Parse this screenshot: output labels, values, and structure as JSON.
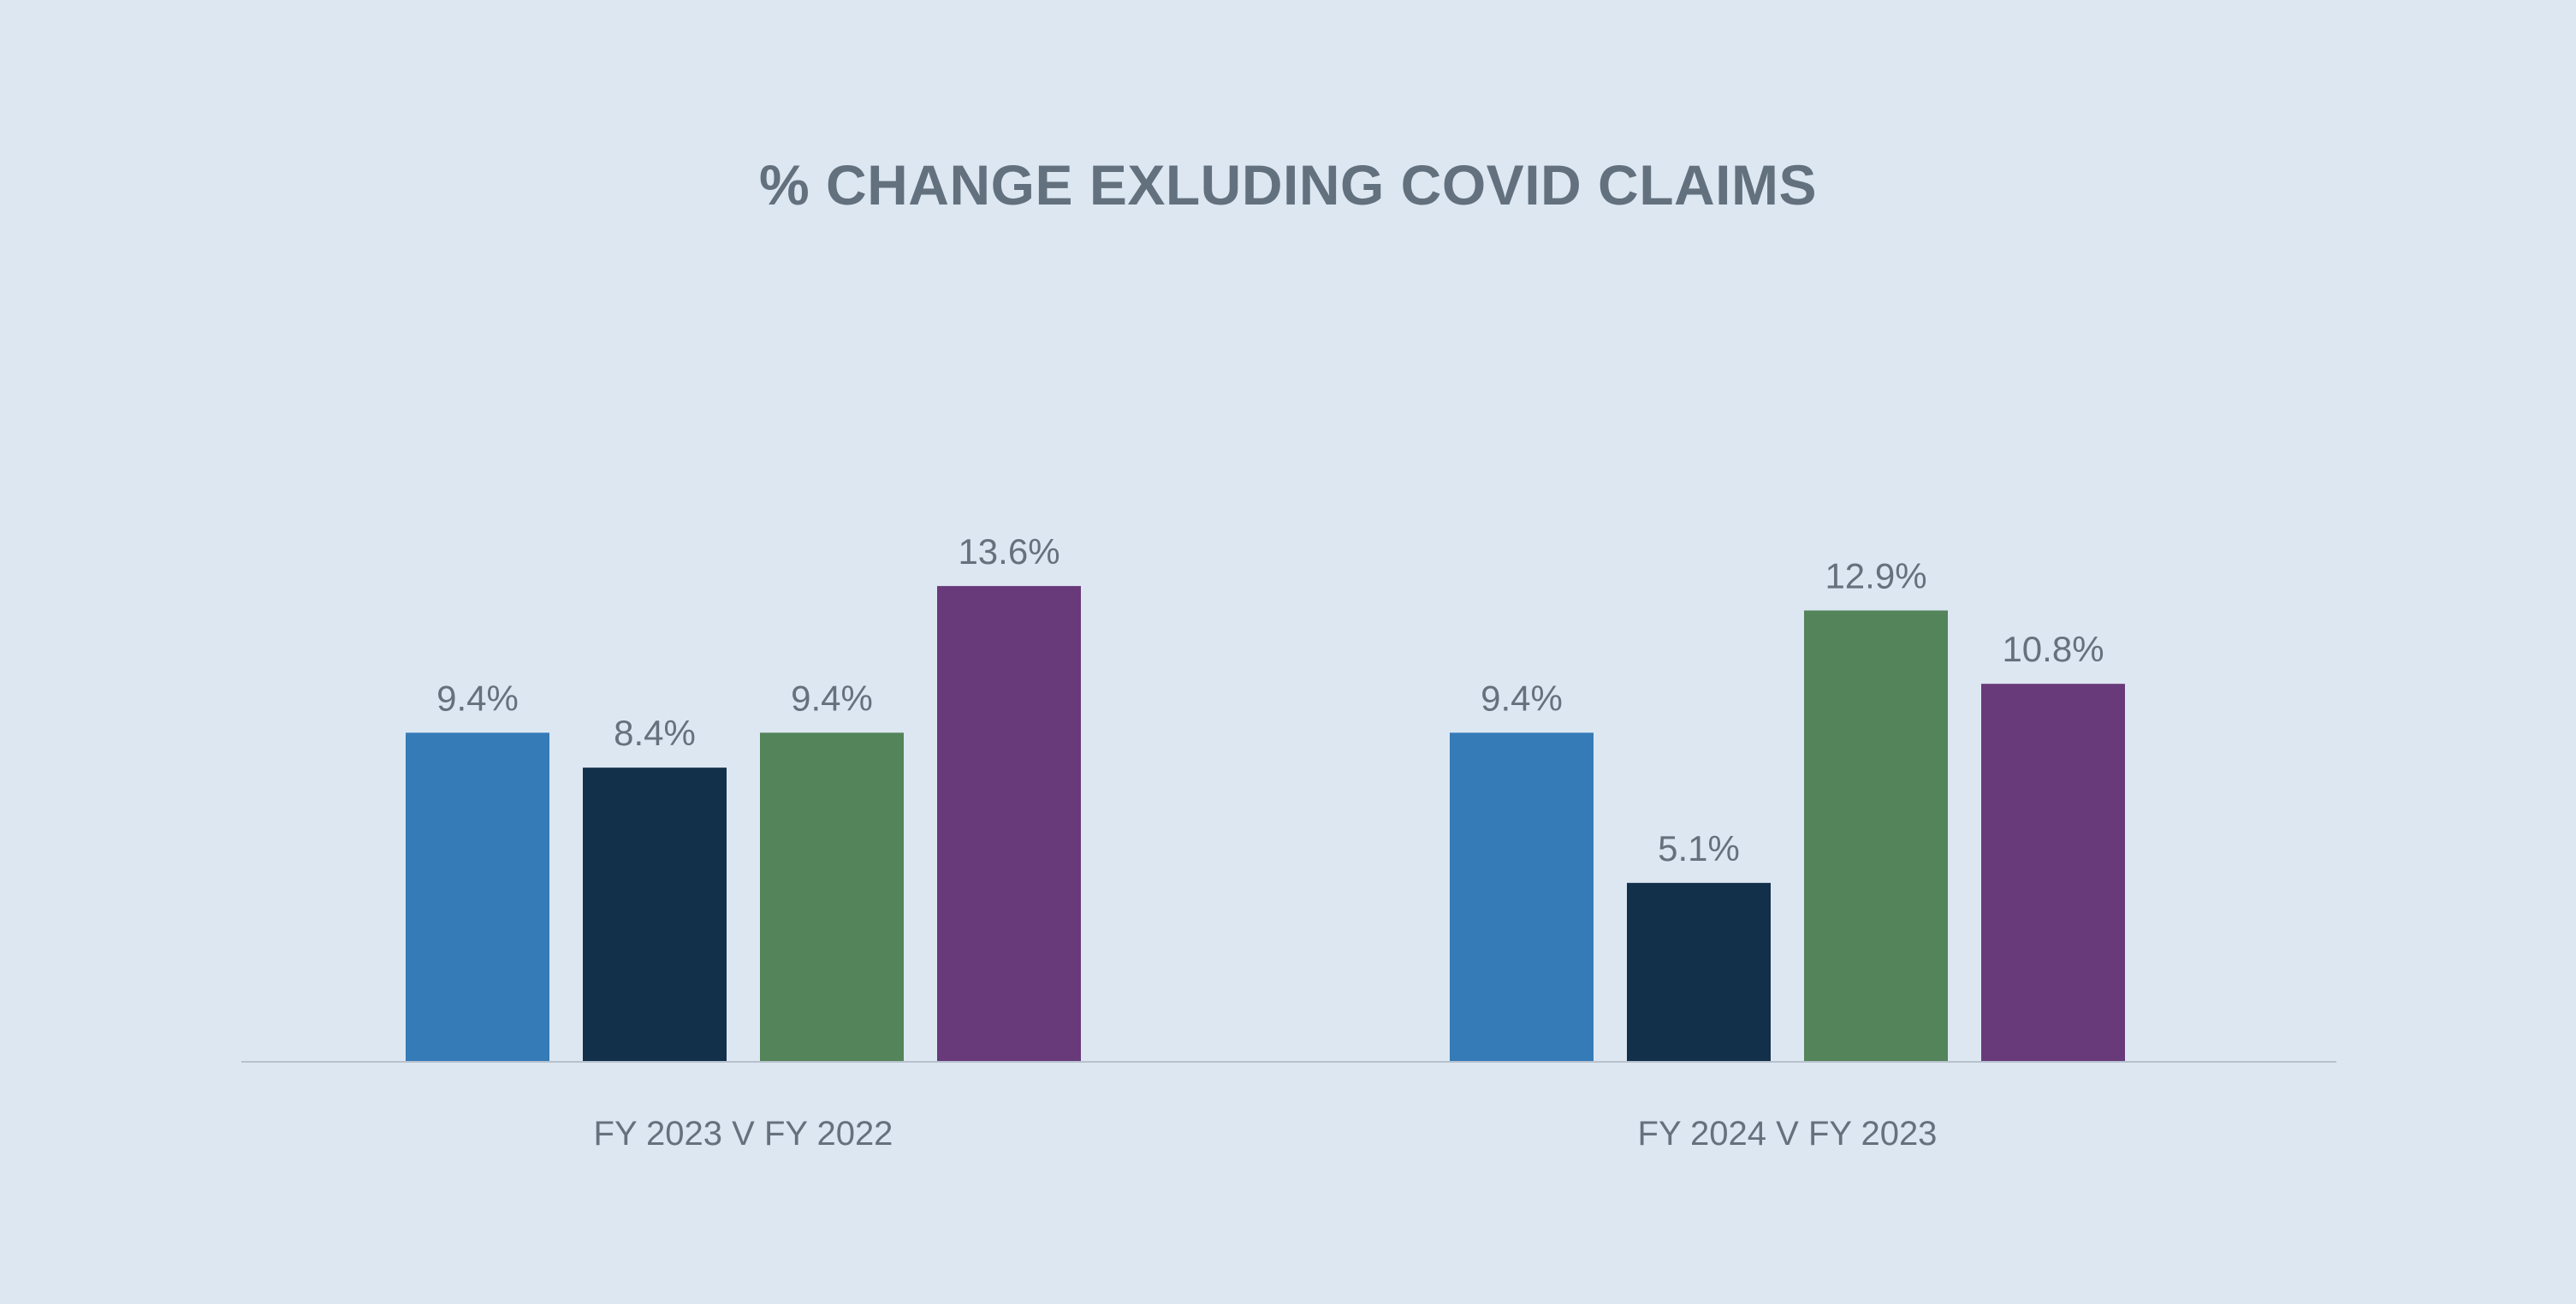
{
  "chart_data": {
    "type": "bar",
    "title": "% CHANGE EXLUDING COVID CLAIMS",
    "categories": [
      "FY 2023 V FY 2022",
      "FY 2024 V FY 2023"
    ],
    "series": [
      {
        "color": "#357bb8",
        "values": [
          9.4,
          9.4
        ],
        "labels": [
          "9.4%",
          "9.4%"
        ]
      },
      {
        "color": "#13304a",
        "values": [
          8.4,
          5.1
        ],
        "labels": [
          "8.4%",
          "5.1%"
        ]
      },
      {
        "color": "#54845a",
        "values": [
          9.4,
          12.9
        ],
        "labels": [
          "9.4%",
          "12.9%"
        ]
      },
      {
        "color": "#683a7a",
        "values": [
          13.6,
          10.8
        ],
        "labels": [
          "13.6%",
          "10.8%"
        ]
      }
    ],
    "ylim": [
      0,
      24.5
    ],
    "grid": false,
    "legend": "none",
    "axis_color": "#b8c2cd",
    "text_color": "#67717d"
  }
}
